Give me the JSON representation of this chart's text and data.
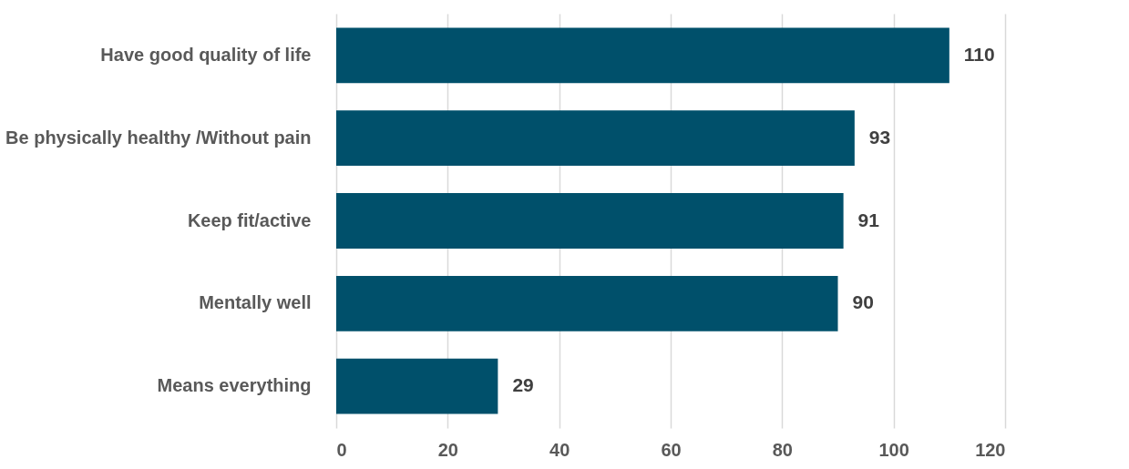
{
  "chart_data": {
    "type": "bar",
    "orientation": "horizontal",
    "categories": [
      "Have good quality of life",
      "Be physically healthy /Without pain",
      "Keep fit/active",
      "Mentally well",
      "Means everything"
    ],
    "values": [
      110,
      93,
      91,
      90,
      29
    ],
    "color": "#00506b",
    "xlim": [
      0,
      120
    ],
    "xticks": [
      0,
      20,
      40,
      60,
      80,
      100,
      120
    ],
    "grid": "x",
    "data_labels": true
  }
}
